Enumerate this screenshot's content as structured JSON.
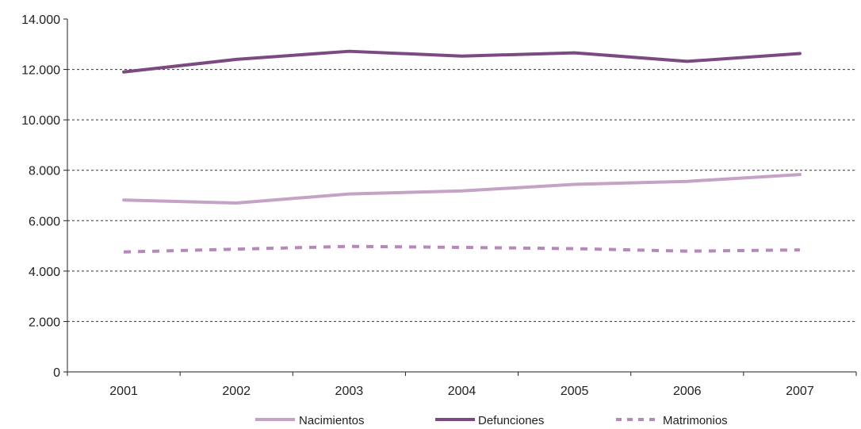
{
  "colors": {
    "nacimientos": "#c4a3c6",
    "defunciones": "#7b4a80",
    "matrimonios": "#b58ab9",
    "axis": "#222222",
    "grid": "#333333"
  },
  "chart_data": {
    "type": "line",
    "title": "",
    "xlabel": "",
    "ylabel": "",
    "x": [
      "2001",
      "2002",
      "2003",
      "2004",
      "2005",
      "2006",
      "2007"
    ],
    "ylim": [
      0,
      14000
    ],
    "yticks": [
      0,
      2000,
      4000,
      6000,
      8000,
      10000,
      12000,
      14000
    ],
    "ytick_labels": [
      "0",
      "2.000",
      "4.000",
      "6.000",
      "8.000",
      "10.000",
      "12.000",
      "14.000"
    ],
    "grid": "horizontal dashed",
    "legend_position": "bottom",
    "series": [
      {
        "name": "Nacimientos",
        "style": "solid",
        "color": "#c4a3c6",
        "values": [
          6820,
          6700,
          7060,
          7180,
          7440,
          7560,
          7830
        ]
      },
      {
        "name": "Defunciones",
        "style": "solid",
        "color": "#7b4a80",
        "values": [
          11900,
          12400,
          12720,
          12530,
          12660,
          12320,
          12630
        ]
      },
      {
        "name": "Matrimonios",
        "style": "dashed",
        "color": "#b58ab9",
        "values": [
          4760,
          4870,
          4980,
          4940,
          4890,
          4790,
          4840
        ]
      }
    ]
  }
}
